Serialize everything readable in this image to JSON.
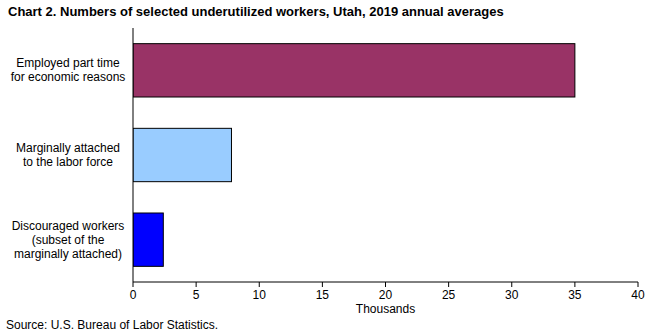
{
  "chart_data": {
    "type": "bar",
    "orientation": "horizontal",
    "title": "Chart 2. Numbers of selected underutilized workers, Utah, 2019 annual averages",
    "categories": [
      "Employed part time\nfor economic reasons",
      "Marginally attached\nto the labor force",
      "Discouraged workers\n(subset of the\nmarginally attached)"
    ],
    "values": [
      35.0,
      7.8,
      2.4
    ],
    "colors": [
      "#993366",
      "#99ccff",
      "#0000ff"
    ],
    "xlim": [
      0,
      40
    ],
    "xticks": [
      0,
      5,
      10,
      15,
      20,
      25,
      30,
      35,
      40
    ],
    "x_label": "Thousands",
    "grid": false,
    "source": "Source: U.S. Bureau of Labor Statistics."
  }
}
